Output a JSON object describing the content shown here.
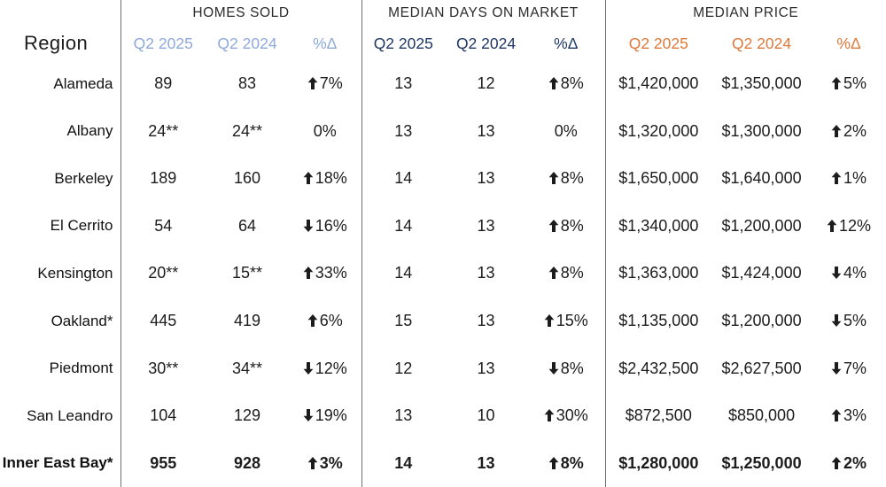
{
  "styles": {
    "homes_sold_accent": "#8EA9DB",
    "days_on_market_accent": "#1F3864",
    "median_price_accent": "#E0793C",
    "divider_color": "#6e6e6e",
    "text_color": "#1c1c1c"
  },
  "chart_data": {
    "type": "table",
    "region_column": "Region",
    "column_groups": [
      {
        "title": "HOMES SOLD",
        "columns": [
          "Q2 2025",
          "Q2 2024",
          "%Δ"
        ]
      },
      {
        "title": "MEDIAN DAYS ON MARKET",
        "columns": [
          "Q2 2025",
          "Q2 2024",
          "%Δ"
        ]
      },
      {
        "title": "MEDIAN PRICE",
        "columns": [
          "Q2 2025",
          "Q2 2024",
          "%Δ"
        ]
      }
    ],
    "rows": [
      {
        "region": "Alameda",
        "bold": false,
        "homes_sold": {
          "q2_2025": "89",
          "q2_2024": "83",
          "delta_dir": "up",
          "delta": "7%"
        },
        "days_on_market": {
          "q2_2025": "13",
          "q2_2024": "12",
          "delta_dir": "up",
          "delta": "8%"
        },
        "median_price": {
          "q2_2025": "$1,420,000",
          "q2_2024": "$1,350,000",
          "delta_dir": "up",
          "delta": "5%"
        }
      },
      {
        "region": "Albany",
        "bold": false,
        "homes_sold": {
          "q2_2025": "24**",
          "q2_2024": "24**",
          "delta_dir": "none",
          "delta": "0%"
        },
        "days_on_market": {
          "q2_2025": "13",
          "q2_2024": "13",
          "delta_dir": "none",
          "delta": "0%"
        },
        "median_price": {
          "q2_2025": "$1,320,000",
          "q2_2024": "$1,300,000",
          "delta_dir": "up",
          "delta": "2%"
        }
      },
      {
        "region": "Berkeley",
        "bold": false,
        "homes_sold": {
          "q2_2025": "189",
          "q2_2024": "160",
          "delta_dir": "up",
          "delta": "18%"
        },
        "days_on_market": {
          "q2_2025": "14",
          "q2_2024": "13",
          "delta_dir": "up",
          "delta": "8%"
        },
        "median_price": {
          "q2_2025": "$1,650,000",
          "q2_2024": "$1,640,000",
          "delta_dir": "up",
          "delta": "1%"
        }
      },
      {
        "region": "El Cerrito",
        "bold": false,
        "homes_sold": {
          "q2_2025": "54",
          "q2_2024": "64",
          "delta_dir": "down",
          "delta": "16%"
        },
        "days_on_market": {
          "q2_2025": "14",
          "q2_2024": "13",
          "delta_dir": "up",
          "delta": "8%"
        },
        "median_price": {
          "q2_2025": "$1,340,000",
          "q2_2024": "$1,200,000",
          "delta_dir": "up",
          "delta": "12%"
        }
      },
      {
        "region": "Kensington",
        "bold": false,
        "homes_sold": {
          "q2_2025": "20**",
          "q2_2024": "15**",
          "delta_dir": "up",
          "delta": "33%"
        },
        "days_on_market": {
          "q2_2025": "14",
          "q2_2024": "13",
          "delta_dir": "up",
          "delta": "8%"
        },
        "median_price": {
          "q2_2025": "$1,363,000",
          "q2_2024": "$1,424,000",
          "delta_dir": "down",
          "delta": "4%"
        }
      },
      {
        "region": "Oakland*",
        "bold": false,
        "homes_sold": {
          "q2_2025": "445",
          "q2_2024": "419",
          "delta_dir": "up",
          "delta": "6%"
        },
        "days_on_market": {
          "q2_2025": "15",
          "q2_2024": "13",
          "delta_dir": "up",
          "delta": "15%"
        },
        "median_price": {
          "q2_2025": "$1,135,000",
          "q2_2024": "$1,200,000",
          "delta_dir": "down",
          "delta": "5%"
        }
      },
      {
        "region": "Piedmont",
        "bold": false,
        "homes_sold": {
          "q2_2025": "30**",
          "q2_2024": "34**",
          "delta_dir": "down",
          "delta": "12%"
        },
        "days_on_market": {
          "q2_2025": "12",
          "q2_2024": "13",
          "delta_dir": "down",
          "delta": "8%"
        },
        "median_price": {
          "q2_2025": "$2,432,500",
          "q2_2024": "$2,627,500",
          "delta_dir": "down",
          "delta": "7%"
        }
      },
      {
        "region": "San Leandro",
        "bold": false,
        "homes_sold": {
          "q2_2025": "104",
          "q2_2024": "129",
          "delta_dir": "down",
          "delta": "19%"
        },
        "days_on_market": {
          "q2_2025": "13",
          "q2_2024": "10",
          "delta_dir": "up",
          "delta": "30%"
        },
        "median_price": {
          "q2_2025": "$872,500",
          "q2_2024": "$850,000",
          "delta_dir": "up",
          "delta": "3%"
        }
      },
      {
        "region": "Inner East Bay*",
        "bold": true,
        "homes_sold": {
          "q2_2025": "955",
          "q2_2024": "928",
          "delta_dir": "up",
          "delta": "3%"
        },
        "days_on_market": {
          "q2_2025": "14",
          "q2_2024": "13",
          "delta_dir": "up",
          "delta": "8%"
        },
        "median_price": {
          "q2_2025": "$1,280,000",
          "q2_2024": "$1,250,000",
          "delta_dir": "up",
          "delta": "2%"
        }
      }
    ]
  }
}
